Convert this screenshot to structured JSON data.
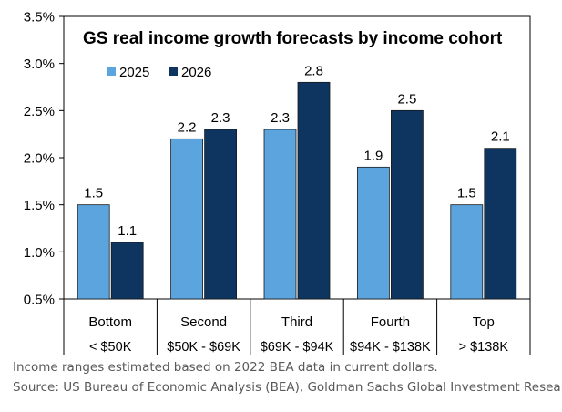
{
  "chart_data": {
    "type": "bar",
    "title": "GS real income growth forecasts by income cohort",
    "categories": [
      "Bottom",
      "Second",
      "Third",
      "Fourth",
      "Top"
    ],
    "subcategories": [
      "< $50K",
      "$50K - $69K",
      "$69K - $94K",
      "$94K - $138K",
      "> $138K"
    ],
    "series": [
      {
        "name": "2025",
        "color": "#5BA4DE",
        "values": [
          1.5,
          2.2,
          2.3,
          1.9,
          1.5
        ]
      },
      {
        "name": "2026",
        "color": "#0E3460",
        "values": [
          1.1,
          2.3,
          2.8,
          2.5,
          2.1
        ]
      }
    ],
    "ylim": [
      0.5,
      3.5
    ],
    "yticks": [
      "0.5%",
      "1.0%",
      "1.5%",
      "2.0%",
      "2.5%",
      "3.0%",
      "3.5%"
    ],
    "ytick_values": [
      0.5,
      1.0,
      1.5,
      2.0,
      2.5,
      3.0,
      3.5
    ],
    "legend_position": "top-left"
  },
  "notes": {
    "line1": "Income ranges estimated based on 2022 BEA data in current dollars.",
    "line2": "Source: US Bureau of Economic Analysis (BEA), Goldman Sachs Global Investment Research"
  }
}
